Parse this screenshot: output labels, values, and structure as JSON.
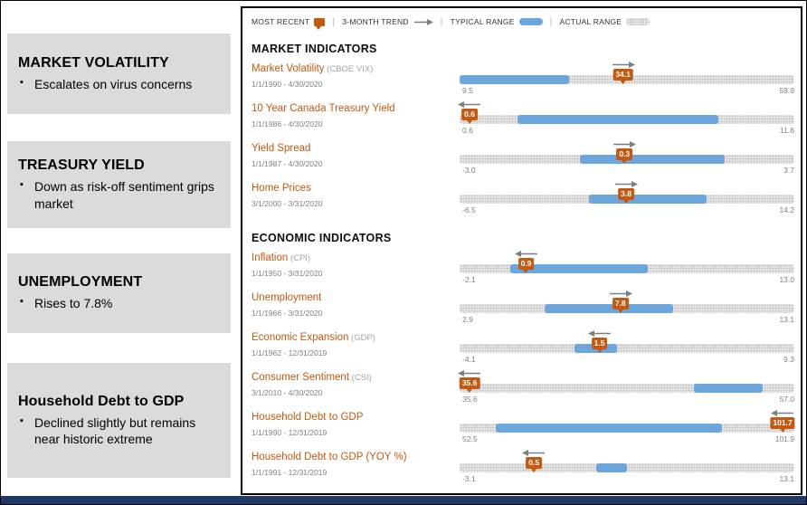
{
  "colors": {
    "accent_orange": "#C45911",
    "typical_range_blue": "#6CA6DC",
    "actual_range_gray": "#E7E7E7",
    "sidebar_gray": "#DBDBDB",
    "footer_navy": "#1F3864"
  },
  "sidebar": {
    "callouts": [
      {
        "title": "MARKET VOLATILITY",
        "bullets": [
          "Escalates on virus concerns"
        ]
      },
      {
        "title": "TREASURY YIELD",
        "bullets": [
          "Down as risk-off sentiment grips market"
        ]
      },
      {
        "title": "UNEMPLOYMENT",
        "bullets": [
          "Rises to 7.8%"
        ]
      },
      {
        "title": "Household Debt to GDP",
        "bullets": [
          "Declined slightly but remains near historic extreme"
        ]
      }
    ]
  },
  "legend": {
    "items": [
      {
        "key": "most-recent",
        "label": "MOST RECENT",
        "swatch": "marker"
      },
      {
        "key": "trend",
        "label": "3-MONTH TREND",
        "swatch": "arrow"
      },
      {
        "key": "typical-range",
        "label": "TYPICAL RANGE",
        "swatch": "typical"
      },
      {
        "key": "actual-range",
        "label": "ACTUAL RANGE",
        "swatch": "actual"
      }
    ]
  },
  "chart_data": {
    "type": "range-indicator-dashboard",
    "sections": [
      {
        "heading": "MARKET INDICATORS",
        "indicators": [
          {
            "name": "Market Volatility",
            "qualifier": "(CBOE VIX)",
            "dates": "1/1/1990 - 4/30/2020",
            "min": 9.5,
            "max": 59.9,
            "min_label": "9.5",
            "max_label": "59.9",
            "typical_range": [
              9.5,
              26.0
            ],
            "value": 34.1,
            "value_label": "34.1",
            "trend": "right"
          },
          {
            "name": "10 Year Canada Treasury Yield",
            "qualifier": "",
            "dates": "1/1/1986 - 4/30/2020",
            "min": 0.6,
            "max": 11.6,
            "min_label": "0.6",
            "max_label": "11.6",
            "typical_range": [
              2.5,
              9.1
            ],
            "value": 0.6,
            "value_label": "0.6",
            "trend": "left"
          },
          {
            "name": "Yield Spread",
            "qualifier": "",
            "dates": "1/1/1987 - 4/30/2020",
            "min": -3.0,
            "max": 3.7,
            "min_label": "-3.0",
            "max_label": "3.7",
            "typical_range": [
              -0.6,
              2.3
            ],
            "value": 0.3,
            "value_label": "0.3",
            "trend": "right"
          },
          {
            "name": "Home Prices",
            "qualifier": "",
            "dates": "3/1/2000 - 3/31/2020",
            "min": -6.5,
            "max": 14.2,
            "min_label": "-6.5",
            "max_label": "14.2",
            "typical_range": [
              1.5,
              8.8
            ],
            "value": 3.8,
            "value_label": "3.8",
            "trend": "right"
          }
        ]
      },
      {
        "heading": "ECONOMIC INDICATORS",
        "indicators": [
          {
            "name": "Inflation",
            "qualifier": "(CPI)",
            "dates": "1/1/1950 - 3/31/2020",
            "min": -2.1,
            "max": 13.0,
            "min_label": "-2.1",
            "max_label": "13.0",
            "typical_range": [
              0.2,
              6.4
            ],
            "value": 0.9,
            "value_label": "0.9",
            "trend": "left"
          },
          {
            "name": "Unemployment",
            "qualifier": "",
            "dates": "1/1/1966 - 3/31/2020",
            "min": 2.9,
            "max": 13.1,
            "min_label": "2.9",
            "max_label": "13.1",
            "typical_range": [
              5.5,
              9.4
            ],
            "value": 7.8,
            "value_label": "7.8",
            "trend": "right"
          },
          {
            "name": "Economic Expansion",
            "qualifier": "(GDP)",
            "dates": "1/1/1962 - 12/31/2019",
            "min": -4.1,
            "max": 9.3,
            "min_label": "-4.1",
            "max_label": "9.3",
            "typical_range": [
              0.5,
              2.2
            ],
            "value": 1.5,
            "value_label": "1.5",
            "trend": "left"
          },
          {
            "name": "Consumer Sentiment",
            "qualifier": "(CSI)",
            "dates": "3/1/2010 - 4/30/2020",
            "min": 35.6,
            "max": 57.0,
            "min_label": "35.6",
            "max_label": "57.0",
            "typical_range": [
              50.6,
              55.0
            ],
            "value": 35.6,
            "value_label": "35.6",
            "trend": "left"
          },
          {
            "name": "Household Debt to GDP",
            "qualifier": "",
            "dates": "1/1/1990 - 12/31/2019",
            "min": 52.5,
            "max": 101.9,
            "min_label": "52.5",
            "max_label": "101.9",
            "typical_range": [
              57.8,
              91.2
            ],
            "value": 101.7,
            "value_label": "101.7",
            "trend": "left"
          },
          {
            "name": "Household Debt to GDP (YOY %)",
            "qualifier": "",
            "dates": "1/1/1991 - 12/31/2019",
            "min": -3.1,
            "max": 13.1,
            "min_label": "-3.1",
            "max_label": "13.1",
            "typical_range": [
              3.5,
              5.0
            ],
            "value": 0.5,
            "value_label": "0.5",
            "trend": "left"
          }
        ]
      }
    ]
  }
}
